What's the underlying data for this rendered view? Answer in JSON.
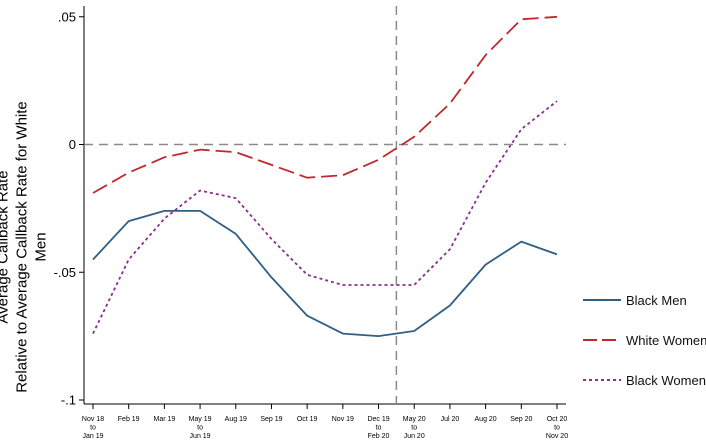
{
  "chart_data": {
    "type": "line",
    "title": "",
    "xlabel": "",
    "ylabel_line1": "Average Callback Rate",
    "ylabel_line2": "Relative to Average Callback Rate for White Men",
    "ylim": [
      -0.1,
      0.052
    ],
    "yticks": [
      {
        "value": 0.05,
        "label": ".05"
      },
      {
        "value": 0,
        "label": "0"
      },
      {
        "value": -0.05,
        "label": "-.05"
      },
      {
        "value": -0.1,
        "label": "-.1"
      }
    ],
    "categories": [
      [
        "Nov 18",
        "to",
        "Jan 19"
      ],
      [
        "Feb 19"
      ],
      [
        "Mar 19"
      ],
      [
        "May 19",
        "to",
        "Jun 19"
      ],
      [
        "Aug 19"
      ],
      [
        "Sep 19"
      ],
      [
        "Oct 19"
      ],
      [
        "Nov 19"
      ],
      [
        "Dec 19",
        "to",
        "Feb 20"
      ],
      [
        "May 20",
        "to",
        "Jun 20"
      ],
      [
        "Jul 20"
      ],
      [
        "Aug 20"
      ],
      [
        "Sep 20"
      ],
      [
        "Oct 20",
        "to",
        "Nov 20"
      ]
    ],
    "series": [
      {
        "name": "Black Men",
        "color": "#2f5f84",
        "style": "solid",
        "values": [
          -0.045,
          -0.03,
          -0.026,
          -0.026,
          -0.035,
          -0.052,
          -0.067,
          -0.074,
          -0.075,
          -0.073,
          -0.063,
          -0.047,
          -0.038,
          -0.043
        ]
      },
      {
        "name": "White Women",
        "color": "#c0282d",
        "style": "dash",
        "values": [
          -0.019,
          -0.011,
          -0.005,
          -0.002,
          -0.003,
          -0.008,
          -0.013,
          -0.012,
          -0.006,
          0.003,
          0.016,
          0.035,
          0.049,
          0.05
        ]
      },
      {
        "name": "Black Women",
        "color": "#8a2e8e",
        "style": "dot",
        "values": [
          -0.074,
          -0.045,
          -0.029,
          -0.018,
          -0.021,
          -0.037,
          -0.051,
          -0.055,
          -0.055,
          -0.055,
          -0.041,
          -0.015,
          0.006,
          0.017
        ]
      }
    ],
    "reference_lines": {
      "horizontal_y": 0,
      "vertical_between": [
        "Dec 19 to Feb 20",
        "May 20 to Jun 20"
      ]
    },
    "grid": false,
    "legend_position": "right"
  }
}
